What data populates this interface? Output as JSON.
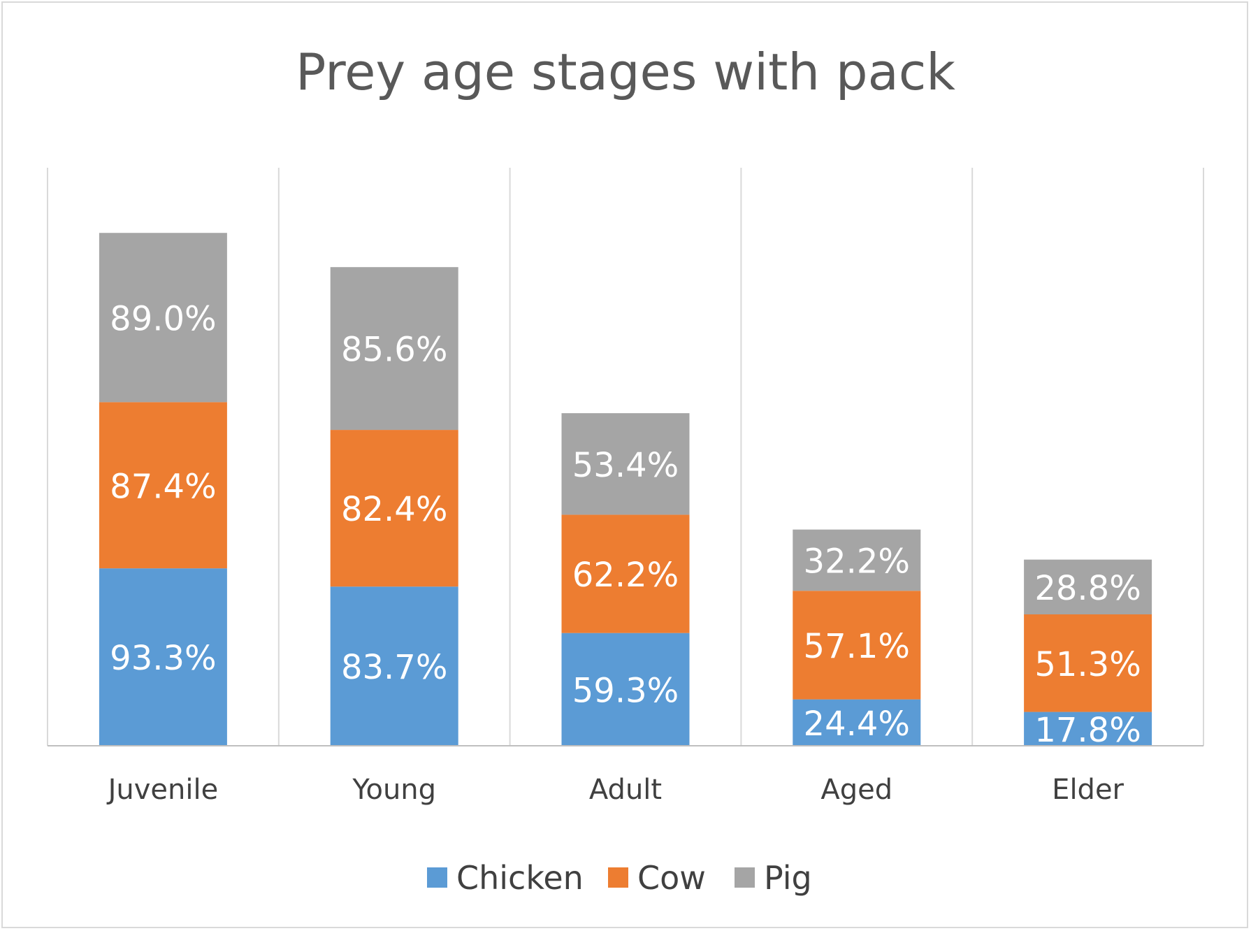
{
  "chart_data": {
    "type": "bar",
    "stacked": true,
    "title": "Prey age stages with pack",
    "xlabel": "",
    "ylabel": "",
    "categories": [
      "Juvenile",
      "Young",
      "Adult",
      "Aged",
      "Elder"
    ],
    "series": [
      {
        "name": "Chicken",
        "color": "#5b9bd5",
        "values": [
          93.3,
          83.7,
          59.3,
          24.4,
          17.8
        ],
        "labels": [
          "93.3%",
          "83.7%",
          "59.3%",
          "24.4%",
          "17.8%"
        ]
      },
      {
        "name": "Cow",
        "color": "#ed7d31",
        "values": [
          87.4,
          82.4,
          62.2,
          57.1,
          51.3
        ],
        "labels": [
          "87.4%",
          "82.4%",
          "62.2%",
          "57.1%",
          "51.3%"
        ]
      },
      {
        "name": "Pig",
        "color": "#a5a5a5",
        "values": [
          89.0,
          85.6,
          53.4,
          32.2,
          28.8
        ],
        "labels": [
          "89.0%",
          "85.6%",
          "53.4%",
          "32.2%",
          "28.8%"
        ]
      }
    ],
    "ylim": [
      0,
      300
    ],
    "grid": {
      "vertical_category_lines": true,
      "horizontal": false
    },
    "legend": {
      "position": "bottom"
    },
    "data_labels": true
  }
}
